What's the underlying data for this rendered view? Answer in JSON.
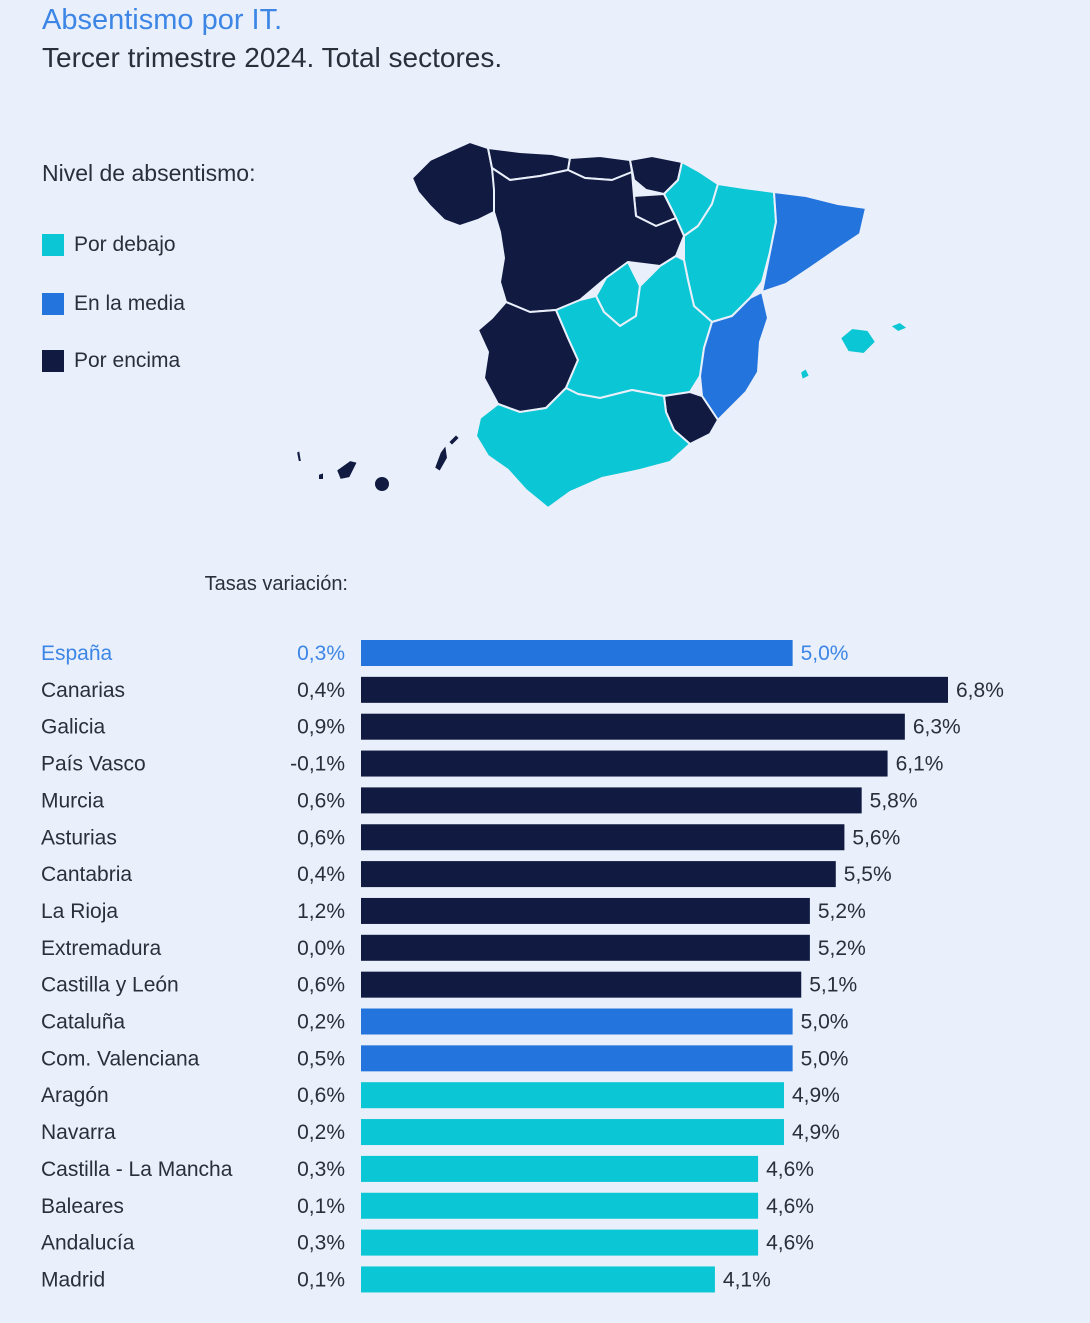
{
  "header": {
    "title": "Absentismo por IT.",
    "subtitle": "Tercer trimestre 2024. Total sectores."
  },
  "legend": {
    "title": "Nivel de absentismo:",
    "items": [
      {
        "label": "Por debajo",
        "color": "#0bc6d4"
      },
      {
        "label": "En la media",
        "color": "#2374dc"
      },
      {
        "label": "Por encima",
        "color": "#111a40"
      }
    ]
  },
  "chart_data": {
    "type": "bar",
    "orientation": "horizontal",
    "variation_header": "Tasas variación:",
    "categories": [
      "España",
      "Canarias",
      "Galicia",
      "País Vasco",
      "Murcia",
      "Asturias",
      "Cantabria",
      "La Rioja",
      "Extremadura",
      "Castilla y León",
      "Cataluña",
      "Com. Valenciana",
      "Aragón",
      "Navarra",
      "Castilla - La Mancha",
      "Baleares",
      "Andalucía",
      "Madrid"
    ],
    "values": [
      5.0,
      6.8,
      6.3,
      6.1,
      5.8,
      5.6,
      5.5,
      5.2,
      5.2,
      5.1,
      5.0,
      5.0,
      4.9,
      4.9,
      4.6,
      4.6,
      4.6,
      4.1
    ],
    "value_labels": [
      "5,0%",
      "6,8%",
      "6,3%",
      "6,1%",
      "5,8%",
      "5,6%",
      "5,5%",
      "5,2%",
      "5,2%",
      "5,1%",
      "5,0%",
      "5,0%",
      "4,9%",
      "4,9%",
      "4,6%",
      "4,6%",
      "4,6%",
      "4,1%"
    ],
    "variation_labels": [
      "0,3%",
      "0,4%",
      "0,9%",
      "-0,1%",
      "0,6%",
      "0,6%",
      "0,4%",
      "1,2%",
      "0,0%",
      "0,6%",
      "0,2%",
      "0,5%",
      "0,6%",
      "0,2%",
      "0,3%",
      "0,1%",
      "0,3%",
      "0,1%"
    ],
    "levels": [
      "media",
      "encima",
      "encima",
      "encima",
      "encima",
      "encima",
      "encima",
      "encima",
      "encima",
      "encima",
      "media",
      "media",
      "debajo",
      "debajo",
      "debajo",
      "debajo",
      "debajo",
      "debajo"
    ],
    "colors": {
      "debajo": "#0bc6d4",
      "media": "#2374dc",
      "encima": "#111a40",
      "highlight_text": "#3d86e6"
    },
    "xlim": [
      0,
      6.8
    ]
  }
}
